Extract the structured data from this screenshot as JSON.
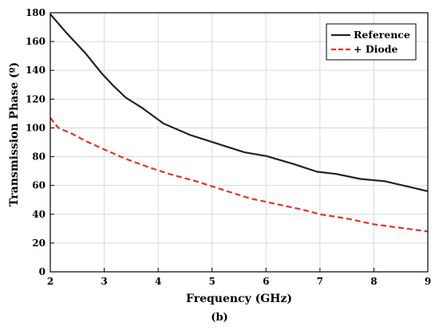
{
  "chart_data": {
    "type": "line",
    "title": "",
    "xlabel": "Frequency (GHz)",
    "ylabel": "Transmission Phase  (º)",
    "xlim": [
      2,
      9
    ],
    "ylim": [
      0,
      180
    ],
    "x_ticks": [
      2,
      3,
      4,
      5,
      6,
      7,
      8,
      9
    ],
    "y_ticks": [
      0,
      20,
      40,
      60,
      80,
      100,
      120,
      140,
      160,
      180
    ],
    "grid": true,
    "legend_position": "top-right",
    "series": [
      {
        "name": "Reference",
        "color": "#222222",
        "style": "solid",
        "x": [
          2.0,
          2.3,
          2.65,
          2.95,
          3.15,
          3.4,
          3.7,
          4.1,
          4.6,
          5.1,
          5.6,
          6.0,
          6.5,
          6.95,
          7.3,
          7.75,
          8.2,
          8.6,
          9.0
        ],
        "y": [
          179,
          166,
          152,
          138,
          130,
          121,
          114,
          103,
          95,
          89,
          83,
          80.5,
          75,
          69.5,
          68,
          64.5,
          63,
          59.5,
          56
        ]
      },
      {
        "name": "+ Diode",
        "color": "#e8302a",
        "style": "dashed",
        "x": [
          2.0,
          2.15,
          2.4,
          2.65,
          3.0,
          3.4,
          3.8,
          4.2,
          4.7,
          5.2,
          5.7,
          6.2,
          6.7,
          7.0,
          7.5,
          8.0,
          8.5,
          9.0
        ],
        "y": [
          107,
          100,
          96,
          91,
          85,
          78.5,
          73,
          68,
          63,
          57,
          51,
          47,
          43,
          40,
          37,
          33,
          30.5,
          28
        ]
      }
    ]
  },
  "caption": "(b)"
}
